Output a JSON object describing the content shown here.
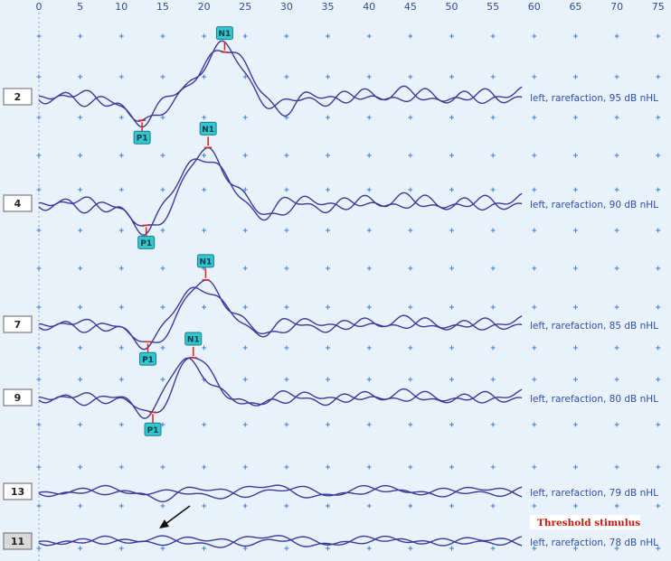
{
  "chart_data": {
    "type": "line",
    "x_ticks": [
      0,
      5,
      10,
      15,
      20,
      25,
      30,
      35,
      40,
      45,
      50,
      55,
      60,
      65,
      70,
      75
    ],
    "xlim": [
      0,
      75
    ],
    "grid": true,
    "colors": {
      "trace": "#3d3a9c",
      "marker_fill": "#33c6cf",
      "marker_tick": "#e01f1f",
      "grid_plus": "#3d7fd1",
      "threshold_text": "#c01b0e"
    },
    "rows": [
      {
        "id": "2",
        "label": "left, rarefaction, 95 dB nHL",
        "peaks": [
          {
            "name": "N1",
            "x": 22.5,
            "pos": "above"
          },
          {
            "name": "P1",
            "x": 12.5,
            "pos": "below"
          }
        ]
      },
      {
        "id": "4",
        "label": "left, rarefaction, 90 dB nHL",
        "peaks": [
          {
            "name": "N1",
            "x": 20.5,
            "pos": "above"
          },
          {
            "name": "P1",
            "x": 13,
            "pos": "below"
          }
        ]
      },
      {
        "id": "7",
        "label": "left, rarefaction, 85 dB nHL",
        "peaks": [
          {
            "name": "N1",
            "x": 20.2,
            "pos": "above"
          },
          {
            "name": "P1",
            "x": 13.2,
            "pos": "below"
          }
        ]
      },
      {
        "id": "9",
        "label": "left, rarefaction, 80 dB nHL",
        "peaks": [
          {
            "name": "N1",
            "x": 18.7,
            "pos": "above"
          },
          {
            "name": "P1",
            "x": 13.8,
            "pos": "below"
          }
        ]
      },
      {
        "id": "13",
        "label": "left, rarefaction, 79 dB nHL",
        "peaks": []
      },
      {
        "id": "11",
        "label": "left, rarefaction, 78 dB nHL",
        "peaks": [],
        "highlight": true,
        "annotation": "Threshold stimulus"
      }
    ]
  }
}
